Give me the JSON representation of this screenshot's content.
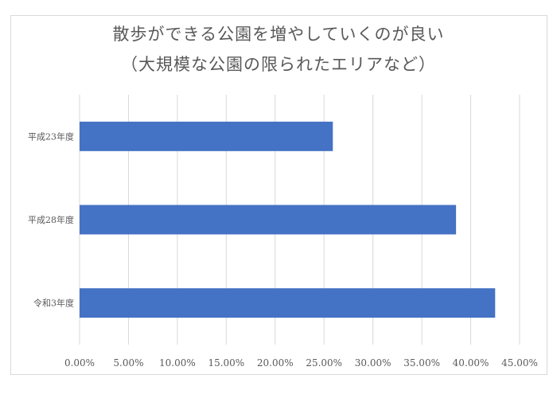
{
  "chart_data": {
    "type": "bar",
    "orientation": "horizontal",
    "title_line1": "散歩ができる公園を増やしていくのが良い",
    "title_line2": "（大規模な公園の限られたエリアなど）",
    "categories": [
      "平成23年度",
      "平成28年度",
      "令和3年度"
    ],
    "values": [
      25.9,
      38.5,
      42.5
    ],
    "value_unit": "%",
    "xlim": [
      0,
      45
    ],
    "xticks": [
      "0.00%",
      "5.00%",
      "10.00%",
      "15.00%",
      "20.00%",
      "25.00%",
      "30.00%",
      "35.00%",
      "40.00%",
      "45.00%"
    ],
    "xtick_values": [
      0,
      5,
      10,
      15,
      20,
      25,
      30,
      35,
      40,
      45
    ],
    "grid": true,
    "legend": "none",
    "bar_color": "#4472c4",
    "grid_color": "#d9d9d9"
  }
}
